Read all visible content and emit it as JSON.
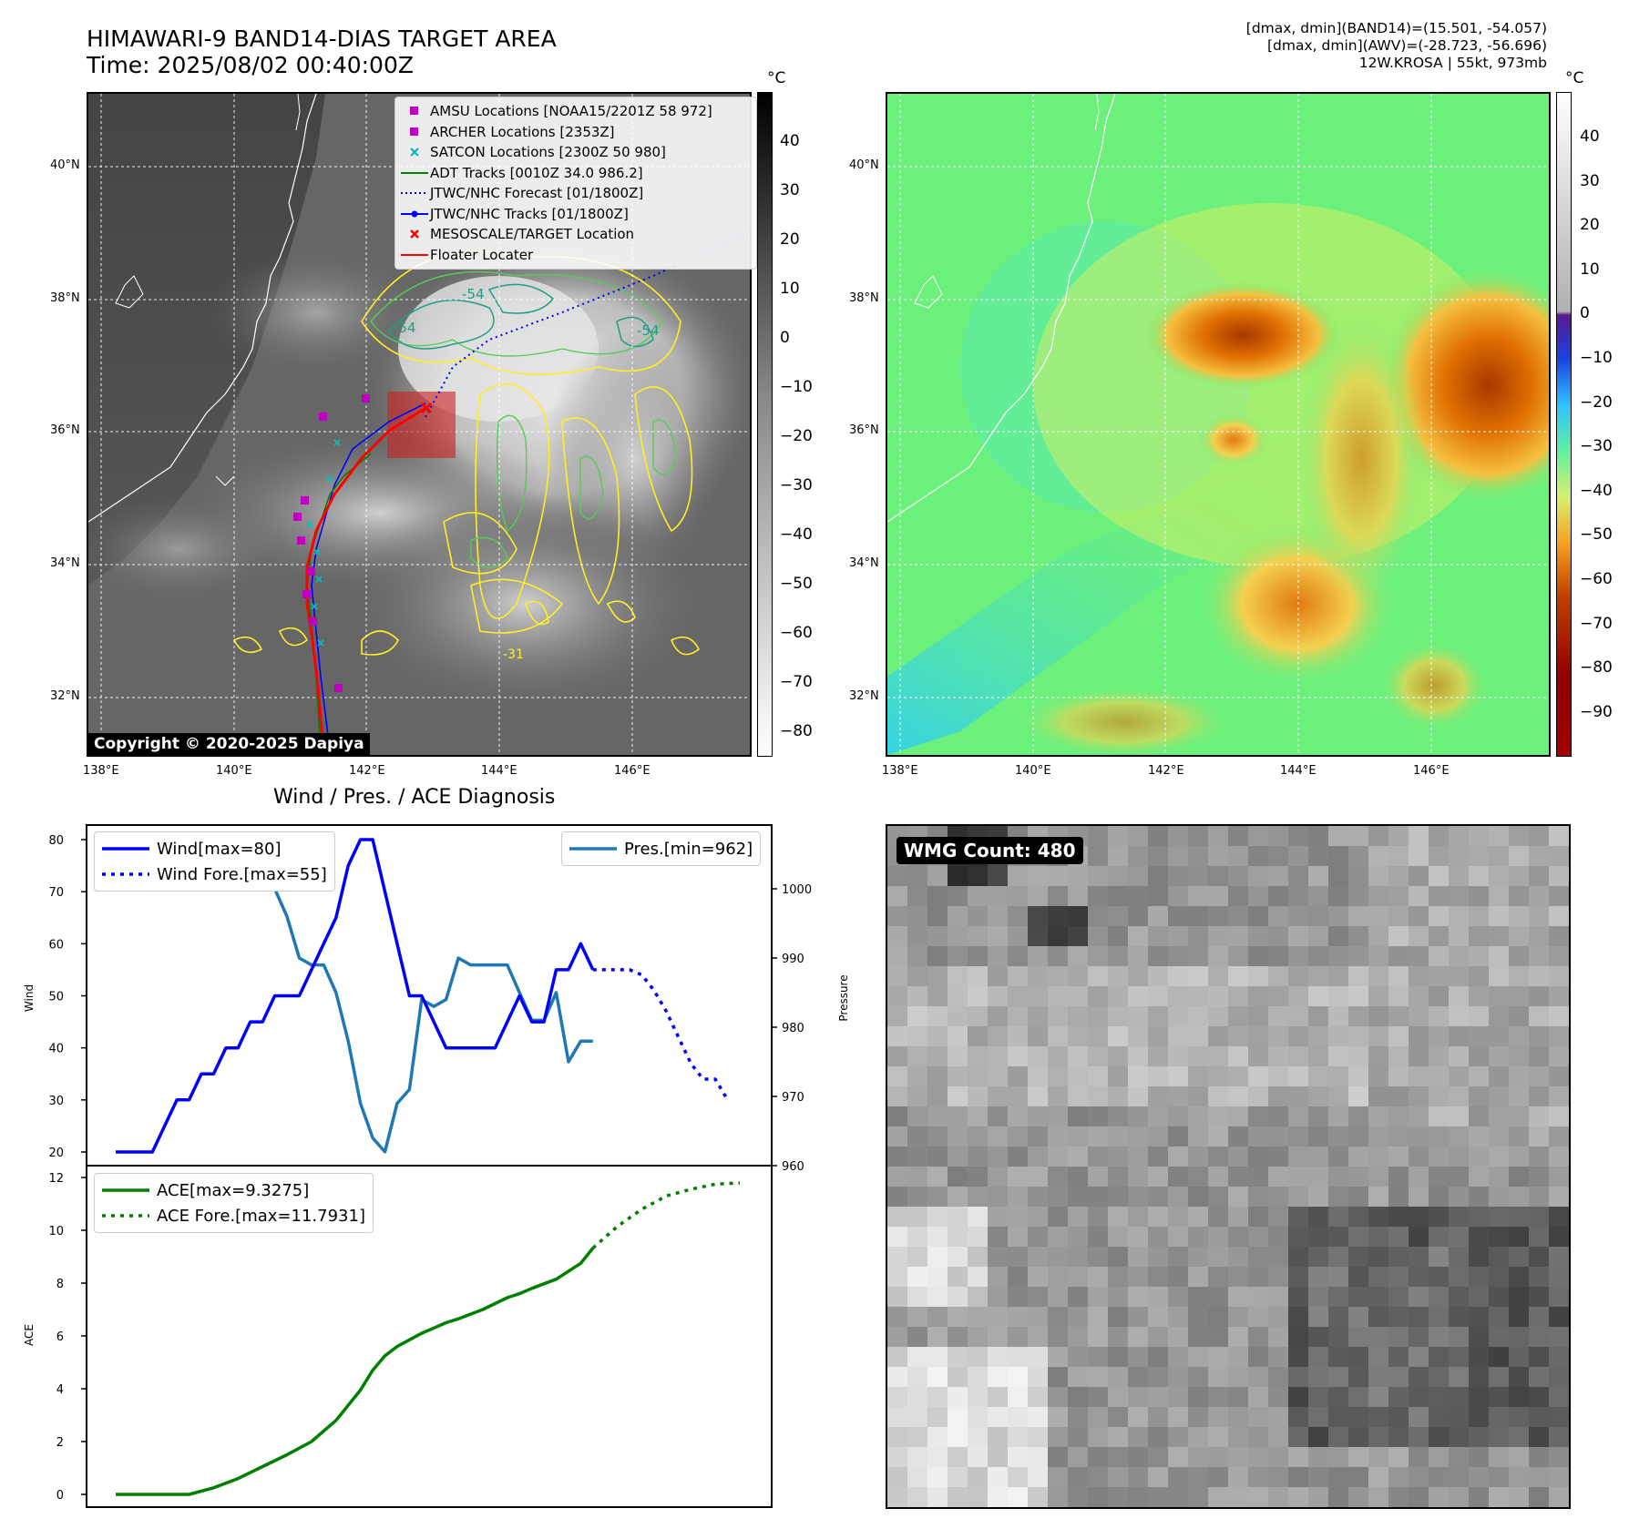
{
  "header": {
    "title_line1": "HIMAWARI-9 BAND14-DIAS TARGET AREA",
    "title_line2": "Time: 2025/08/02 00:40:00Z",
    "info_line1": "[dmax, dmin](BAND14)=(15.501, -54.057)",
    "info_line2": "[dmax, dmin](AWV)=(-28.723, -56.696)",
    "info_line3": "12W.KROSA | 55kt, 973mb"
  },
  "map": {
    "lon_ticks": [
      "138°E",
      "140°E",
      "142°E",
      "144°E",
      "146°E"
    ],
    "lat_ticks": [
      "40°N",
      "38°N",
      "36°N",
      "34°N",
      "32°N"
    ],
    "copyright": "Copyright © 2020-2025 Dapiya",
    "contour_labels": [
      "-54",
      "-54",
      "-54",
      "-31"
    ],
    "legend": [
      {
        "label": "AMSU Locations [NOAA15/2201Z 58 972]",
        "color": "#c000c0"
      },
      {
        "label": "ARCHER Locations [2353Z]",
        "color": "#c000c0"
      },
      {
        "label": "SATCON Locations [2300Z 50 980]",
        "color": "#00b5b5"
      },
      {
        "label": "ADT Tracks [0010Z 34.0 986.2]",
        "color": "#008000"
      },
      {
        "label": "JTWC/NHC Forecast [01/1800Z]",
        "color": "#0000ff"
      },
      {
        "label": "JTWC/NHC Tracks [01/1800Z]",
        "color": "#0000ff"
      },
      {
        "label": "MESOSCALE/TARGET Location",
        "color": "#ff0000"
      },
      {
        "label": "Floater Locater",
        "color": "#ff0000"
      }
    ]
  },
  "colorbar_gray": {
    "unit": "°C",
    "ticks": [
      "40",
      "30",
      "20",
      "10",
      "0",
      "−10",
      "−20",
      "−30",
      "−40",
      "−50",
      "−60",
      "−70",
      "−80"
    ]
  },
  "colorbar_color": {
    "unit": "°C",
    "ticks": [
      "40",
      "30",
      "20",
      "10",
      "0",
      "−10",
      "−20",
      "−30",
      "−40",
      "−50",
      "−60",
      "−70",
      "−80",
      "−90"
    ]
  },
  "diagnosis": {
    "title": "Wind / Pres. / ACE Diagnosis",
    "wind_ylabel": "Wind",
    "pres_ylabel": "Pressure",
    "ace_ylabel": "ACE",
    "wind_ticks": [
      "80",
      "70",
      "60",
      "50",
      "40",
      "30",
      "20"
    ],
    "pres_ticks": [
      "1000",
      "990",
      "980",
      "970",
      "960"
    ],
    "ace_ticks": [
      "12",
      "10",
      "8",
      "6",
      "4",
      "2",
      "0"
    ],
    "legend_wind": "Wind[max=80]",
    "legend_wind_fore": "Wind Fore.[max=55]",
    "legend_pres": "Pres.[min=962]",
    "legend_ace": "ACE[max=9.3275]",
    "legend_ace_fore": "ACE Fore.[max=11.7931]"
  },
  "wmg": {
    "label": "WMG Count: 480"
  },
  "chart_data": [
    {
      "type": "line",
      "title": "Wind / Pres. / ACE Diagnosis",
      "ylabel": "Wind",
      "ylim": [
        18,
        82
      ],
      "series": [
        {
          "name": "Wind[max=80]",
          "color": "#0000ff",
          "style": "solid",
          "x": [
            0,
            1,
            2,
            3,
            4,
            5,
            6,
            7,
            8,
            9,
            10,
            11,
            12,
            13,
            14,
            15,
            16,
            17,
            18,
            19,
            20,
            21,
            22,
            23,
            24,
            25,
            26,
            27,
            28,
            29,
            30,
            31,
            32,
            33,
            34,
            35,
            36,
            37,
            38,
            39
          ],
          "y": [
            20,
            20,
            20,
            20,
            25,
            30,
            30,
            35,
            35,
            40,
            40,
            45,
            45,
            50,
            50,
            50,
            55,
            60,
            65,
            75,
            80,
            80,
            70,
            60,
            50,
            50,
            45,
            40,
            40,
            40,
            40,
            40,
            45,
            50,
            45,
            45,
            55,
            55,
            60,
            55
          ]
        },
        {
          "name": "Wind Fore.[max=55]",
          "color": "#0000ff",
          "style": "dotted",
          "x": [
            39,
            40,
            41,
            42,
            43,
            44,
            45,
            46,
            47,
            48,
            49,
            50
          ],
          "y": [
            55,
            55,
            55,
            55,
            54,
            51,
            47,
            42,
            37,
            34,
            34,
            30
          ]
        }
      ]
    },
    {
      "type": "line",
      "ylabel": "Pressure",
      "ylim": [
        960,
        1010
      ],
      "series": [
        {
          "name": "Pres.[min=962]",
          "color": "#1f77b4",
          "style": "solid",
          "x": [
            0,
            1,
            2,
            3,
            4,
            5,
            6,
            7,
            8,
            9,
            10,
            11,
            12,
            13,
            14,
            15,
            16,
            17,
            18,
            19,
            20,
            21,
            22,
            23,
            24,
            25,
            26,
            27,
            28,
            29,
            30,
            31,
            32,
            33,
            34,
            35,
            36,
            37,
            38,
            39
          ],
          "y": [
            1008,
            1008,
            1008,
            1008,
            1007,
            1006,
            1005,
            1004,
            1004,
            1002,
            1002,
            1000,
            1000,
            1000,
            996,
            990,
            989,
            989,
            985,
            978,
            969,
            964,
            962,
            969,
            971,
            984,
            983,
            984,
            990,
            989,
            989,
            989,
            989,
            985,
            981,
            981,
            985,
            975,
            978,
            978
          ]
        }
      ]
    },
    {
      "type": "line",
      "ylabel": "ACE",
      "ylim": [
        -0.3,
        12.3
      ],
      "series": [
        {
          "name": "ACE[max=9.3275]",
          "color": "#008000",
          "style": "solid",
          "x": [
            0,
            2,
            4,
            6,
            8,
            10,
            12,
            14,
            16,
            18,
            20,
            21,
            22,
            23,
            24,
            25,
            26,
            27,
            28,
            30,
            32,
            33,
            34,
            36,
            38,
            39
          ],
          "y": [
            0,
            0,
            0,
            0,
            0.25,
            0.6,
            1.05,
            1.5,
            2.0,
            2.8,
            3.95,
            4.7,
            5.25,
            5.6,
            5.85,
            6.1,
            6.3,
            6.5,
            6.65,
            7.0,
            7.45,
            7.6,
            7.8,
            8.15,
            8.75,
            9.3275
          ]
        },
        {
          "name": "ACE Fore.[max=11.7931]",
          "color": "#008000",
          "style": "dotted",
          "x": [
            39,
            41,
            43,
            45,
            47,
            49,
            51
          ],
          "y": [
            9.3275,
            10.15,
            10.8,
            11.3,
            11.55,
            11.75,
            11.7931
          ]
        }
      ]
    }
  ]
}
